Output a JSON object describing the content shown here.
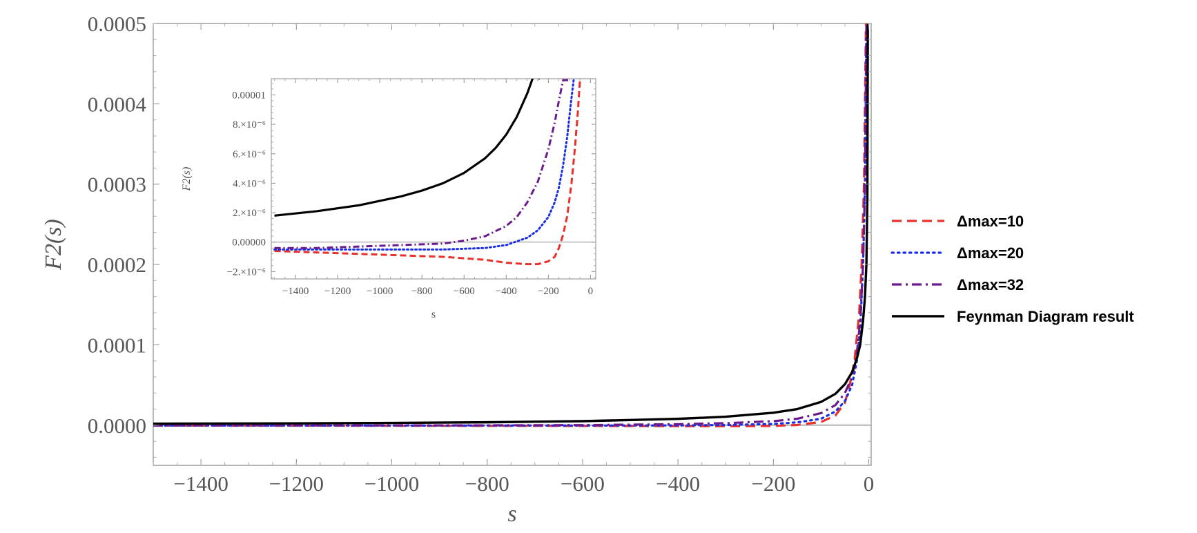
{
  "chart_data": [
    {
      "type": "line",
      "title": "",
      "xlabel": "s",
      "ylabel": "F2(s)",
      "xlim": [
        -1500,
        5
      ],
      "ylim": [
        -5e-05,
        0.0005
      ],
      "x_ticks": [
        -1400,
        -1200,
        -1000,
        -800,
        -600,
        -400,
        -200,
        0
      ],
      "x_tick_labels": [
        "−1400",
        "−1200",
        "−1000",
        "−800",
        "−600",
        "−400",
        "−200",
        "0"
      ],
      "y_ticks": [
        0,
        0.0001,
        0.0002,
        0.0003,
        0.0004,
        0.0005
      ],
      "y_tick_labels": [
        "0.0000",
        "0.0001",
        "0.0002",
        "0.0003",
        "0.0004",
        "0.0005"
      ],
      "grid": false,
      "legend_position": "right",
      "series": [
        {
          "name": "Δmax=10",
          "color": "#e8302a",
          "style": "dashed",
          "x": [
            -1500,
            -1200,
            -1000,
            -800,
            -600,
            -400,
            -300,
            -200,
            -150,
            -100,
            -70,
            -50,
            -40,
            -30,
            -20,
            -15,
            -10,
            -6
          ],
          "y": [
            -5e-07,
            -6e-07,
            -7e-07,
            -8e-07,
            -9e-07,
            -1.2e-06,
            -1.3e-06,
            -1e-06,
            3e-07,
            4e-06,
            1.2e-05,
            2.8e-05,
            5e-05,
            8e-05,
            0.00014,
            0.0002,
            0.0003,
            0.0005
          ]
        },
        {
          "name": "Δmax=20",
          "color": "#1a2ee8",
          "style": "dotted",
          "x": [
            -1500,
            -1200,
            -1000,
            -800,
            -600,
            -400,
            -300,
            -200,
            -150,
            -100,
            -70,
            -50,
            -35,
            -25,
            -18,
            -12,
            -8,
            -5
          ],
          "y": [
            -5e-07,
            -5e-07,
            -5e-07,
            -5e-07,
            -5e-07,
            -3e-07,
            2e-07,
            1.5e-06,
            3.5e-06,
            8e-06,
            1.7e-05,
            3e-05,
            5e-05,
            8e-05,
            0.00012,
            0.0002,
            0.0003,
            0.0005
          ]
        },
        {
          "name": "Δmax=32",
          "color": "#6a1a8c",
          "style": "dashdot",
          "x": [
            -1500,
            -1200,
            -1000,
            -800,
            -600,
            -400,
            -300,
            -200,
            -150,
            -100,
            -70,
            -50,
            -35,
            -25,
            -18,
            -12,
            -8,
            -5
          ],
          "y": [
            -4e-07,
            -3e-07,
            -3e-07,
            -2e-07,
            1e-07,
            1.2e-06,
            2.5e-06,
            5e-06,
            8e-06,
            1.5e-05,
            2.5e-05,
            4e-05,
            6e-05,
            9e-05,
            0.00013,
            0.0002,
            0.0003,
            0.0005
          ]
        },
        {
          "name": "Feynman Diagram result",
          "color": "#000000",
          "style": "solid",
          "x": [
            -1500,
            -1200,
            -1000,
            -800,
            -600,
            -400,
            -300,
            -200,
            -150,
            -100,
            -70,
            -50,
            -35,
            -25,
            -18,
            -12,
            -8,
            -5,
            -3,
            -2
          ],
          "y": [
            1.8e-06,
            2.3e-06,
            2.8e-06,
            3.6e-06,
            5e-06,
            7.9e-06,
            1.05e-05,
            1.55e-05,
            2e-05,
            2.9e-05,
            3.9e-05,
            5.1e-05,
            6.6e-05,
            8.3e-05,
            0.0001,
            0.00013,
            0.00016,
            0.0002,
            0.00028,
            0.0005
          ]
        }
      ]
    },
    {
      "type": "line",
      "title": "",
      "xlabel": "s",
      "ylabel": "F2(s)",
      "xlim": [
        -1515,
        25
      ],
      "ylim": [
        -2.5e-06,
        1.11e-05
      ],
      "x_ticks": [
        -1400,
        -1200,
        -1000,
        -800,
        -600,
        -400,
        -200,
        0
      ],
      "x_tick_labels": [
        "−1400",
        "−1200",
        "−1000",
        "−800",
        "−600",
        "−400",
        "−200",
        "0"
      ],
      "y_ticks": [
        -2e-06,
        0,
        2e-06,
        4e-06,
        6e-06,
        8e-06,
        1e-05
      ],
      "y_tick_labels": [
        "−2.×10⁻⁶",
        "0.00000",
        "2.×10⁻⁶",
        "4.×10⁻⁶",
        "6.×10⁻⁶",
        "8.×10⁻⁶",
        "0.00001"
      ],
      "grid": false,
      "series": [
        {
          "name": "Δmax=10",
          "color": "#e8302a",
          "style": "dashed",
          "x": [
            -1500,
            -1300,
            -1100,
            -900,
            -700,
            -500,
            -400,
            -300,
            -250,
            -200,
            -170,
            -150,
            -130,
            -110,
            -90,
            -75,
            -60,
            -50,
            -40
          ],
          "y": [
            -6e-07,
            -7e-07,
            -8e-07,
            -9e-07,
            -1e-06,
            -1.2e-06,
            -1.4e-06,
            -1.5e-06,
            -1.5e-06,
            -1.3e-06,
            -1e-06,
            -4e-07,
            5e-07,
            1.8e-06,
            4e-06,
            6.2e-06,
            8.8e-06,
            1.1e-05,
            1.1e-05
          ]
        },
        {
          "name": "Δmax=20",
          "color": "#1a2ee8",
          "style": "dotted",
          "x": [
            -1500,
            -1300,
            -1100,
            -900,
            -700,
            -500,
            -400,
            -300,
            -250,
            -200,
            -170,
            -150,
            -130,
            -110,
            -95,
            -80,
            -70
          ],
          "y": [
            -5e-07,
            -5e-07,
            -5e-07,
            -5e-07,
            -5e-07,
            -4e-07,
            -2e-07,
            3e-07,
            8e-07,
            1.7e-06,
            2.7e-06,
            3.7e-06,
            5.2e-06,
            7.2e-06,
            9.2e-06,
            1.1e-05,
            1.1e-05
          ]
        },
        {
          "name": "Δmax=32",
          "color": "#6a1a8c",
          "style": "dashdot",
          "x": [
            -1500,
            -1300,
            -1100,
            -900,
            -700,
            -600,
            -500,
            -400,
            -350,
            -300,
            -250,
            -200,
            -170,
            -150,
            -130,
            -115,
            -100
          ],
          "y": [
            -4e-07,
            -4e-07,
            -3e-07,
            -2e-07,
            -1e-07,
            1e-07,
            4e-07,
            1.1e-06,
            1.7e-06,
            2.7e-06,
            4.1e-06,
            6.3e-06,
            8.1e-06,
            9.6e-06,
            1.1e-05,
            1.1e-05,
            1.1e-05
          ]
        },
        {
          "name": "Feynman Diagram result",
          "color": "#000000",
          "style": "solid",
          "x": [
            -1500,
            -1300,
            -1100,
            -1000,
            -900,
            -800,
            -700,
            -600,
            -500,
            -450,
            -400,
            -350,
            -300,
            -270,
            -240
          ],
          "y": [
            1.8e-06,
            2.1e-06,
            2.5e-06,
            2.8e-06,
            3.1e-06,
            3.5e-06,
            4e-06,
            4.7e-06,
            5.7e-06,
            6.4e-06,
            7.3e-06,
            8.5e-06,
            1.01e-05,
            1.13e-05,
            1.11e-05
          ]
        }
      ]
    }
  ]
}
